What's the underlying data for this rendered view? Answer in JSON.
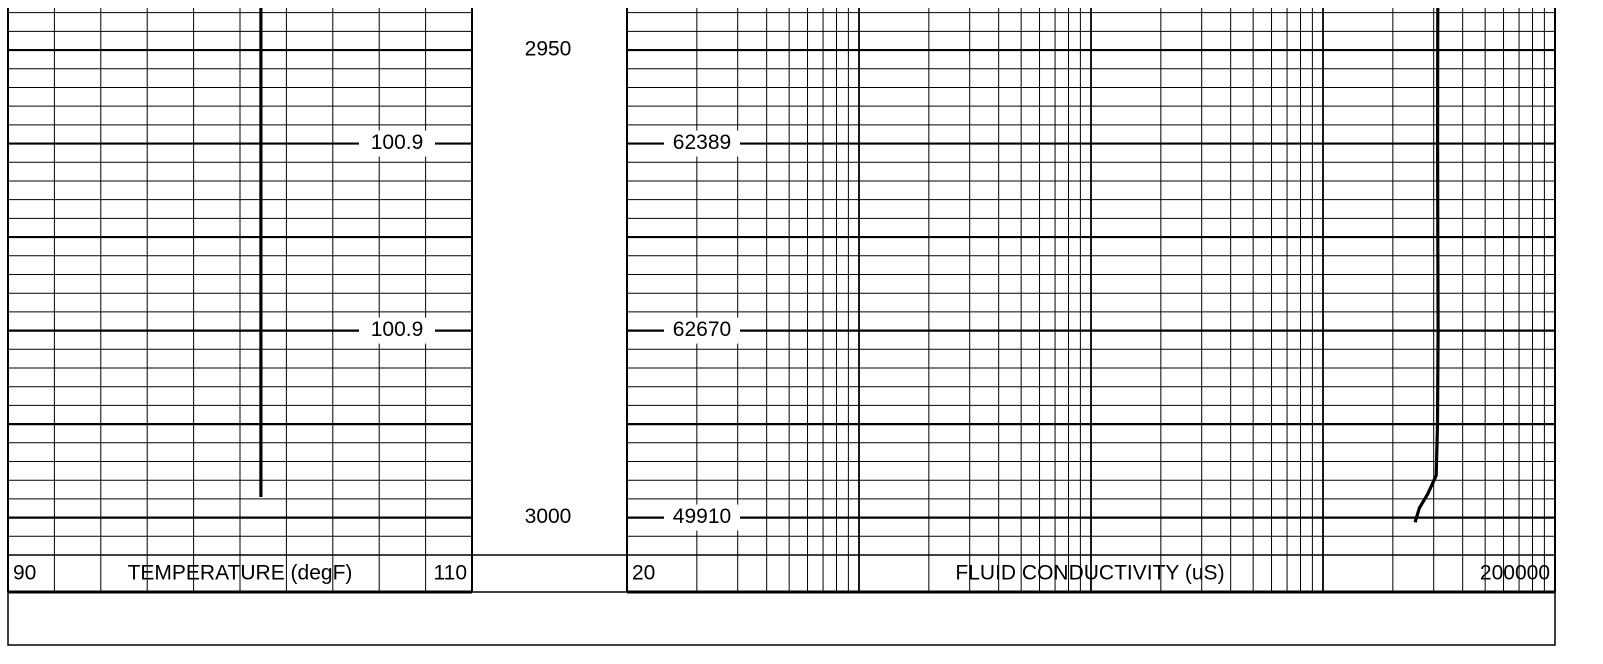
{
  "depth": {
    "ylim": [
      2945.5,
      3004
    ],
    "yticks": [
      2950,
      3000
    ],
    "grid": [
      2946,
      2948,
      2950,
      2952,
      2954,
      2956,
      2958,
      2960,
      2962,
      2964,
      2966,
      2968,
      2970,
      2972,
      2974,
      2976,
      2978,
      2980,
      2982,
      2984,
      2986,
      2988,
      2990,
      2992,
      2994,
      2996,
      2998,
      3000,
      3002,
      3004
    ]
  },
  "chart_data": [
    {
      "type": "line",
      "x_label": "TEMPERATURE (degF)",
      "xscale": "linear",
      "xlim": [
        90,
        110
      ],
      "xgrid": [
        90,
        92,
        94,
        96,
        98,
        100,
        102,
        104,
        106,
        108,
        110
      ],
      "series": [
        {
          "color": "#000000",
          "y": [
            2945.5,
            2960,
            2980,
            2997.8
          ],
          "values": [
            100.9,
            100.9,
            100.9,
            100.9
          ]
        }
      ],
      "value_labels": [
        {
          "y": 2960,
          "value": 100.9
        },
        {
          "y": 2980,
          "value": 100.9
        }
      ]
    },
    {
      "type": "line",
      "x_label": "FLUID CONDUCTIVITY (uS)",
      "xscale": "log",
      "xlim": [
        20,
        200000
      ],
      "xgrid": [
        20,
        40,
        60,
        80,
        100,
        120,
        140,
        160,
        180,
        200,
        400,
        600,
        800,
        1000,
        1200,
        1400,
        1600,
        1800,
        2000,
        4000,
        6000,
        8000,
        10000,
        12000,
        14000,
        16000,
        18000,
        20000,
        40000,
        60000,
        80000,
        100000,
        120000,
        140000,
        160000,
        180000,
        200000
      ],
      "series": [
        {
          "color": "#000000",
          "y": [
            2945.5,
            2950,
            2960,
            2970,
            2980,
            2990,
            2995.5,
            2997.5,
            2999,
            3000.5
          ],
          "values": [
            62500,
            62450,
            62389,
            62500,
            62670,
            62300,
            61500,
            56500,
            52000,
            49910
          ]
        }
      ],
      "value_labels": [
        {
          "y": 2960,
          "value": 62389
        },
        {
          "y": 2980,
          "value": 62670
        },
        {
          "y": 3000,
          "value": 49910
        }
      ]
    }
  ]
}
